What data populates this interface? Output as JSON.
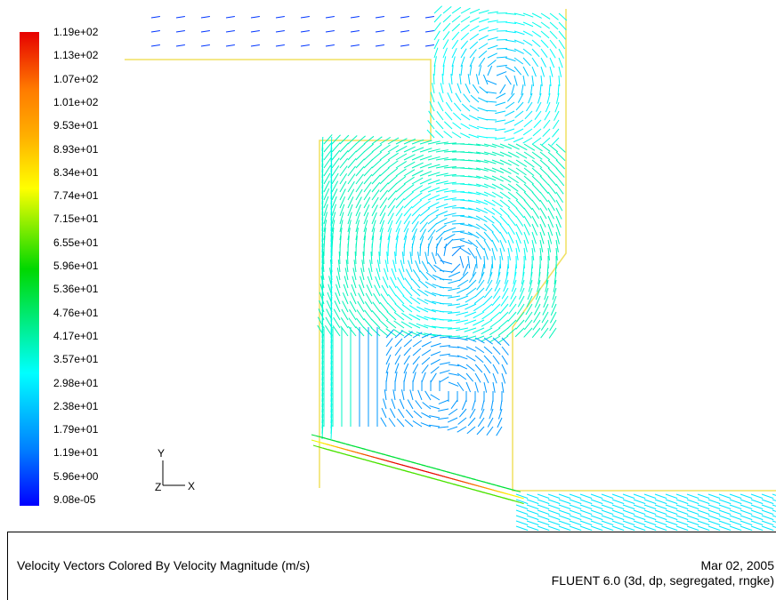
{
  "colorbar": {
    "labels": [
      "1.19e+02",
      "1.13e+02",
      "1.07e+02",
      "1.01e+02",
      "9.53e+01",
      "8.93e+01",
      "8.34e+01",
      "7.74e+01",
      "7.15e+01",
      "6.55e+01",
      "5.96e+01",
      "5.36e+01",
      "4.76e+01",
      "4.17e+01",
      "3.57e+01",
      "2.98e+01",
      "2.38e+01",
      "1.79e+01",
      "1.19e+01",
      "5.96e+00",
      "9.08e-05"
    ],
    "colors": {
      "high": "#e60000",
      "mid": "#00d800",
      "low": "#0000ff"
    }
  },
  "axes": {
    "y_label": "Y",
    "z_label": "Z",
    "x_label": "X"
  },
  "footer": {
    "caption": "Velocity Vectors Colored By Velocity Magnitude (m/s)",
    "date": "Mar 02, 2005",
    "solver": "FLUENT 6.0 (3d, dp, segregated, rngke)"
  },
  "geometry_color": "#f0e060"
}
